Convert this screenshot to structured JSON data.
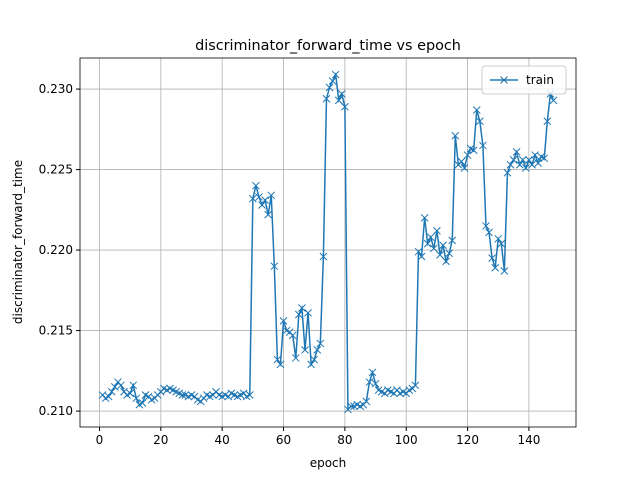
{
  "chart_data": {
    "type": "line",
    "title": "discriminator_forward_time vs epoch",
    "xlabel": "epoch",
    "ylabel": "discriminator_forward_time",
    "x": [
      1,
      2,
      3,
      4,
      5,
      6,
      7,
      8,
      9,
      10,
      11,
      12,
      13,
      14,
      15,
      16,
      17,
      18,
      19,
      20,
      21,
      22,
      23,
      24,
      25,
      26,
      27,
      28,
      29,
      30,
      31,
      32,
      33,
      34,
      35,
      36,
      37,
      38,
      39,
      40,
      41,
      42,
      43,
      44,
      45,
      46,
      47,
      48,
      49,
      50,
      51,
      52,
      53,
      54,
      55,
      56,
      57,
      58,
      59,
      60,
      61,
      62,
      63,
      64,
      65,
      66,
      67,
      68,
      69,
      70,
      71,
      72,
      73,
      74,
      75,
      76,
      77,
      78,
      79,
      80,
      81,
      82,
      83,
      84,
      85,
      86,
      87,
      88,
      89,
      90,
      91,
      92,
      93,
      94,
      95,
      96,
      97,
      98,
      99,
      100,
      101,
      102,
      103,
      104,
      105,
      106,
      107,
      108,
      109,
      110,
      111,
      112,
      113,
      114,
      115,
      116,
      117,
      118,
      119,
      120,
      121,
      122,
      123,
      124,
      125,
      126,
      127,
      128,
      129,
      130,
      131,
      132,
      133,
      134,
      135,
      136,
      137,
      138,
      139,
      140,
      141,
      142,
      143,
      144,
      145,
      146,
      147,
      148
    ],
    "series": [
      {
        "name": "train",
        "color": "#1f77b4",
        "marker": "x",
        "values": [
          0.211,
          0.2108,
          0.2109,
          0.2112,
          0.2115,
          0.2118,
          0.2116,
          0.2112,
          0.211,
          0.2111,
          0.2116,
          0.2108,
          0.2104,
          0.2105,
          0.211,
          0.2109,
          0.2107,
          0.2108,
          0.211,
          0.2112,
          0.2114,
          0.2113,
          0.2114,
          0.2113,
          0.2112,
          0.2111,
          0.211,
          0.211,
          0.2109,
          0.211,
          0.2109,
          0.2107,
          0.2106,
          0.2108,
          0.211,
          0.2109,
          0.211,
          0.2112,
          0.211,
          0.2109,
          0.211,
          0.2109,
          0.2111,
          0.211,
          0.2109,
          0.211,
          0.2111,
          0.2109,
          0.211,
          0.2232,
          0.224,
          0.2233,
          0.2228,
          0.2231,
          0.2222,
          0.2234,
          0.219,
          0.2132,
          0.2129,
          0.2156,
          0.215,
          0.2149,
          0.2147,
          0.2133,
          0.216,
          0.2164,
          0.2138,
          0.2161,
          0.2129,
          0.2132,
          0.2138,
          0.2142,
          0.2196,
          0.2294,
          0.2301,
          0.2305,
          0.2309,
          0.2293,
          0.2297,
          0.2289,
          0.2101,
          0.2103,
          0.2103,
          0.2104,
          0.2103,
          0.2104,
          0.2106,
          0.2118,
          0.2124,
          0.2117,
          0.2113,
          0.2112,
          0.2111,
          0.2113,
          0.2112,
          0.2111,
          0.2113,
          0.2111,
          0.2112,
          0.2111,
          0.2113,
          0.2114,
          0.2116,
          0.2199,
          0.2196,
          0.222,
          0.2204,
          0.2208,
          0.2201,
          0.2212,
          0.2197,
          0.2203,
          0.2193,
          0.2198,
          0.2206,
          0.2271,
          0.2253,
          0.2255,
          0.2251,
          0.2259,
          0.2263,
          0.2262,
          0.2287,
          0.228,
          0.2265,
          0.2215,
          0.2211,
          0.2195,
          0.2189,
          0.2207,
          0.2204,
          0.2187,
          0.2248,
          0.2253,
          0.2256,
          0.2261,
          0.2253,
          0.2256,
          0.2251,
          0.2256,
          0.2253,
          0.2259,
          0.2254,
          0.2258,
          0.2257,
          0.228,
          0.2297,
          0.2293
        ]
      }
    ],
    "xlim": [
      -6.35,
      155.35
    ],
    "xticks": [
      0,
      20,
      40,
      60,
      80,
      100,
      120,
      140
    ],
    "ylim": [
      0.20901,
      0.23193
    ],
    "yticks": [
      {
        "value": 0.21,
        "label": "0.210"
      },
      {
        "value": 0.215,
        "label": "0.215"
      },
      {
        "value": 0.22,
        "label": "0.220"
      },
      {
        "value": 0.225,
        "label": "0.225"
      },
      {
        "value": 0.23,
        "label": "0.230"
      }
    ],
    "grid": true,
    "legend": "upper right"
  }
}
